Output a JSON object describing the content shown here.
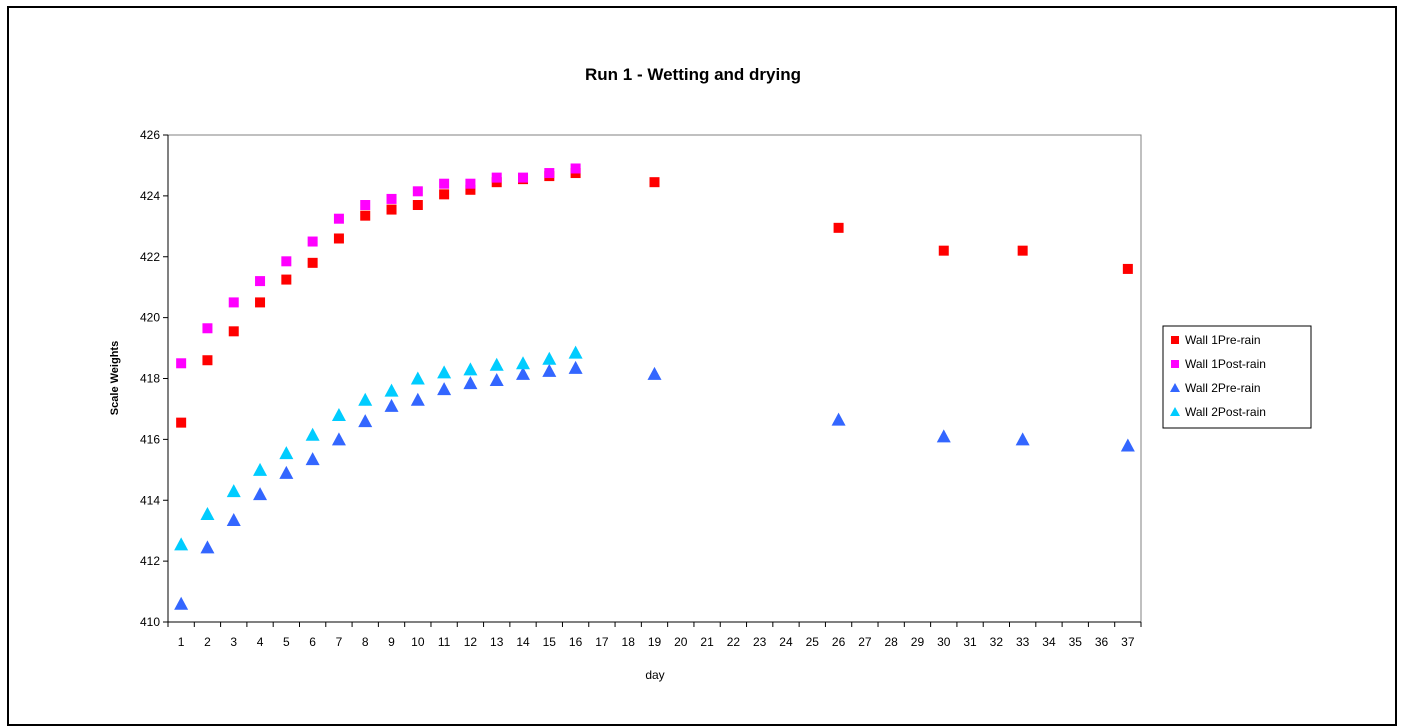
{
  "chart_data": {
    "type": "scatter",
    "title": "Run 1 - Wetting and drying",
    "xlabel": "day",
    "ylabel": "Scale Weights",
    "x_categories": [
      "1",
      "2",
      "3",
      "4",
      "5",
      "6",
      "7",
      "8",
      "9",
      "10",
      "11",
      "12",
      "13",
      "14",
      "15",
      "16",
      "17",
      "18",
      "19",
      "20",
      "21",
      "22",
      "23",
      "24",
      "25",
      "26",
      "27",
      "28",
      "29",
      "30",
      "31",
      "32",
      "33",
      "34",
      "35",
      "36",
      "37"
    ],
    "ylim": [
      410,
      426
    ],
    "yticks": [
      "410",
      "412",
      "414",
      "416",
      "418",
      "420",
      "422",
      "424",
      "426"
    ],
    "grid": false,
    "legend_position": "right",
    "series": [
      {
        "name": "Wall 1Pre-rain",
        "marker": "square",
        "color": "#ff0000",
        "x": [
          "1",
          "2",
          "3",
          "4",
          "5",
          "6",
          "7",
          "8",
          "9",
          "10",
          "11",
          "12",
          "13",
          "14",
          "15",
          "16",
          "19",
          "26",
          "30",
          "33",
          "37"
        ],
        "y": [
          416.55,
          418.6,
          419.55,
          420.5,
          421.25,
          421.8,
          422.6,
          423.35,
          423.55,
          423.7,
          424.05,
          424.2,
          424.45,
          424.55,
          424.65,
          424.75,
          424.45,
          422.95,
          422.2,
          422.2,
          421.6
        ]
      },
      {
        "name": "Wall 1Post-rain",
        "marker": "square",
        "color": "#ff00ff",
        "x": [
          "1",
          "2",
          "3",
          "4",
          "5",
          "6",
          "7",
          "8",
          "9",
          "10",
          "11",
          "12",
          "13",
          "14",
          "15",
          "16"
        ],
        "y": [
          418.5,
          419.65,
          420.5,
          421.2,
          421.85,
          422.5,
          423.25,
          423.7,
          423.9,
          424.15,
          424.4,
          424.4,
          424.6,
          424.6,
          424.75,
          424.9
        ]
      },
      {
        "name": "Wall 2Pre-rain",
        "marker": "triangle",
        "color": "#3366ff",
        "x": [
          "1",
          "2",
          "3",
          "4",
          "5",
          "6",
          "7",
          "8",
          "9",
          "10",
          "11",
          "12",
          "13",
          "14",
          "15",
          "16",
          "19",
          "26",
          "30",
          "33",
          "37"
        ],
        "y": [
          410.6,
          412.45,
          413.35,
          414.2,
          414.9,
          415.35,
          416.0,
          416.6,
          417.1,
          417.3,
          417.65,
          417.85,
          417.95,
          418.15,
          418.25,
          418.35,
          418.15,
          416.65,
          416.1,
          416.0,
          415.8
        ]
      },
      {
        "name": "Wall 2Post-rain",
        "marker": "triangle",
        "color": "#00ccff",
        "x": [
          "1",
          "2",
          "3",
          "4",
          "5",
          "6",
          "7",
          "8",
          "9",
          "10",
          "11",
          "12",
          "13",
          "14",
          "15",
          "16"
        ],
        "y": [
          412.55,
          413.55,
          414.3,
          415.0,
          415.55,
          416.15,
          416.8,
          417.3,
          417.6,
          418.0,
          418.2,
          418.3,
          418.45,
          418.5,
          418.65,
          418.85
        ]
      }
    ]
  }
}
